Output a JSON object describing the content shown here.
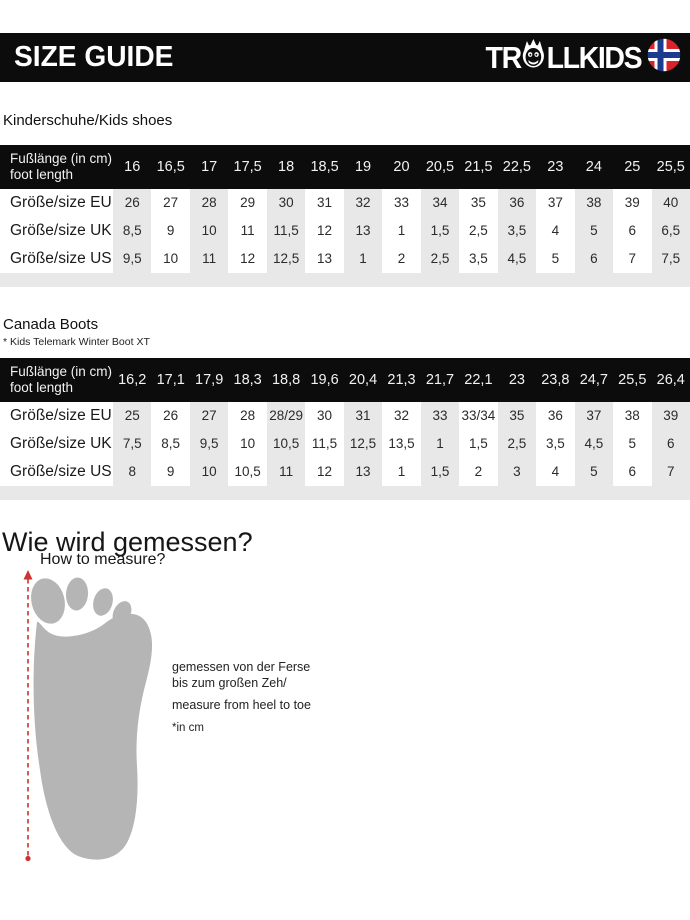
{
  "header": {
    "title": "SIZE GUIDE",
    "brand_pre": "TR",
    "brand_post": "LLKIDS"
  },
  "sections": {
    "kids_shoes_title": "Kinderschuhe/Kids shoes",
    "canada_boots_title": "Canada Boots",
    "canada_boots_subtitle": "* Kids Telemark Winter Boot XT"
  },
  "tables": [
    {
      "header_line1": "Fußlänge (in cm)",
      "header_line2": "foot length",
      "foot_lengths": [
        "16",
        "16,5",
        "17",
        "17,5",
        "18",
        "18,5",
        "19",
        "20",
        "20,5",
        "21,5",
        "22,5",
        "23",
        "24",
        "25",
        "25,5"
      ],
      "rows": [
        {
          "label": "Größe/size EU",
          "values": [
            "26",
            "27",
            "28",
            "29",
            "30",
            "31",
            "32",
            "33",
            "34",
            "35",
            "36",
            "37",
            "38",
            "39",
            "40"
          ]
        },
        {
          "label": "Größe/size UK",
          "values": [
            "8,5",
            "9",
            "10",
            "11",
            "11,5",
            "12",
            "13",
            "1",
            "1,5",
            "2,5",
            "3,5",
            "4",
            "5",
            "6",
            "6,5"
          ]
        },
        {
          "label": "Größe/size US",
          "values": [
            "9,5",
            "10",
            "11",
            "12",
            "12,5",
            "13",
            "1",
            "2",
            "2,5",
            "3,5",
            "4,5",
            "5",
            "6",
            "7",
            "7,5"
          ]
        }
      ]
    },
    {
      "header_line1": "Fußlänge (in cm)",
      "header_line2": "foot length",
      "foot_lengths": [
        "16,2",
        "17,1",
        "17,9",
        "18,3",
        "18,8",
        "19,6",
        "20,4",
        "21,3",
        "21,7",
        "22,1",
        "23",
        "23,8",
        "24,7",
        "25,5",
        "26,4"
      ],
      "rows": [
        {
          "label": "Größe/size EU",
          "values": [
            "25",
            "26",
            "27",
            "28",
            "28/29",
            "30",
            "31",
            "32",
            "33",
            "33/34",
            "35",
            "36",
            "37",
            "38",
            "39"
          ]
        },
        {
          "label": "Größe/size UK",
          "values": [
            "7,5",
            "8,5",
            "9,5",
            "10",
            "10,5",
            "11,5",
            "12,5",
            "13,5",
            "1",
            "1,5",
            "2,5",
            "3,5",
            "4,5",
            "5",
            "6"
          ]
        },
        {
          "label": "Größe/size US",
          "values": [
            "8",
            "9",
            "10",
            "10,5",
            "11",
            "12",
            "13",
            "1",
            "1,5",
            "2",
            "3",
            "4",
            "5",
            "6",
            "7"
          ]
        }
      ]
    }
  ],
  "measure": {
    "heading_de": "Wie wird gemessen?",
    "heading_en": "How to measure?",
    "note_de_line1": "gemessen von der Ferse",
    "note_de_line2": "bis zum großen Zeh/",
    "note_en": "measure from heel to toe",
    "unit_note": "*in cm"
  },
  "colors": {
    "bar_black": "#0c0c0c",
    "table_alt_gray": "#e8e8e8",
    "foot_gray": "#b5b5b5",
    "measure_red": "#cc3333",
    "flag_red": "#d8232a",
    "flag_blue": "#1d3a8f"
  }
}
